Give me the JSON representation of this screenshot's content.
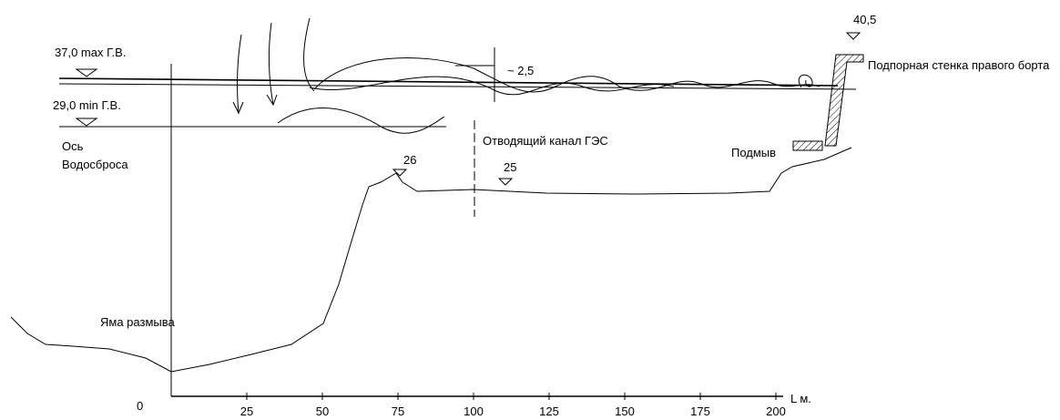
{
  "labels": {
    "max_level": "37,0 max Г.В.",
    "min_level": "29,0 min Г.В.",
    "spillway_axis": [
      "Ось",
      "Водосброса"
    ],
    "scour_pit": "Яма размыва",
    "mark_26": "26",
    "mark_25": "25",
    "canal": "Отводящий канал ГЭС",
    "wave_height": "~ 2,5",
    "mark_40_5": "40,5",
    "wall": "Подпорная стенка правого борта",
    "undermining": "Подмыв"
  },
  "axis": {
    "origin": "0",
    "ticks": [
      25,
      50,
      75,
      100,
      125,
      150,
      175,
      200
    ],
    "unit": "L м."
  }
}
